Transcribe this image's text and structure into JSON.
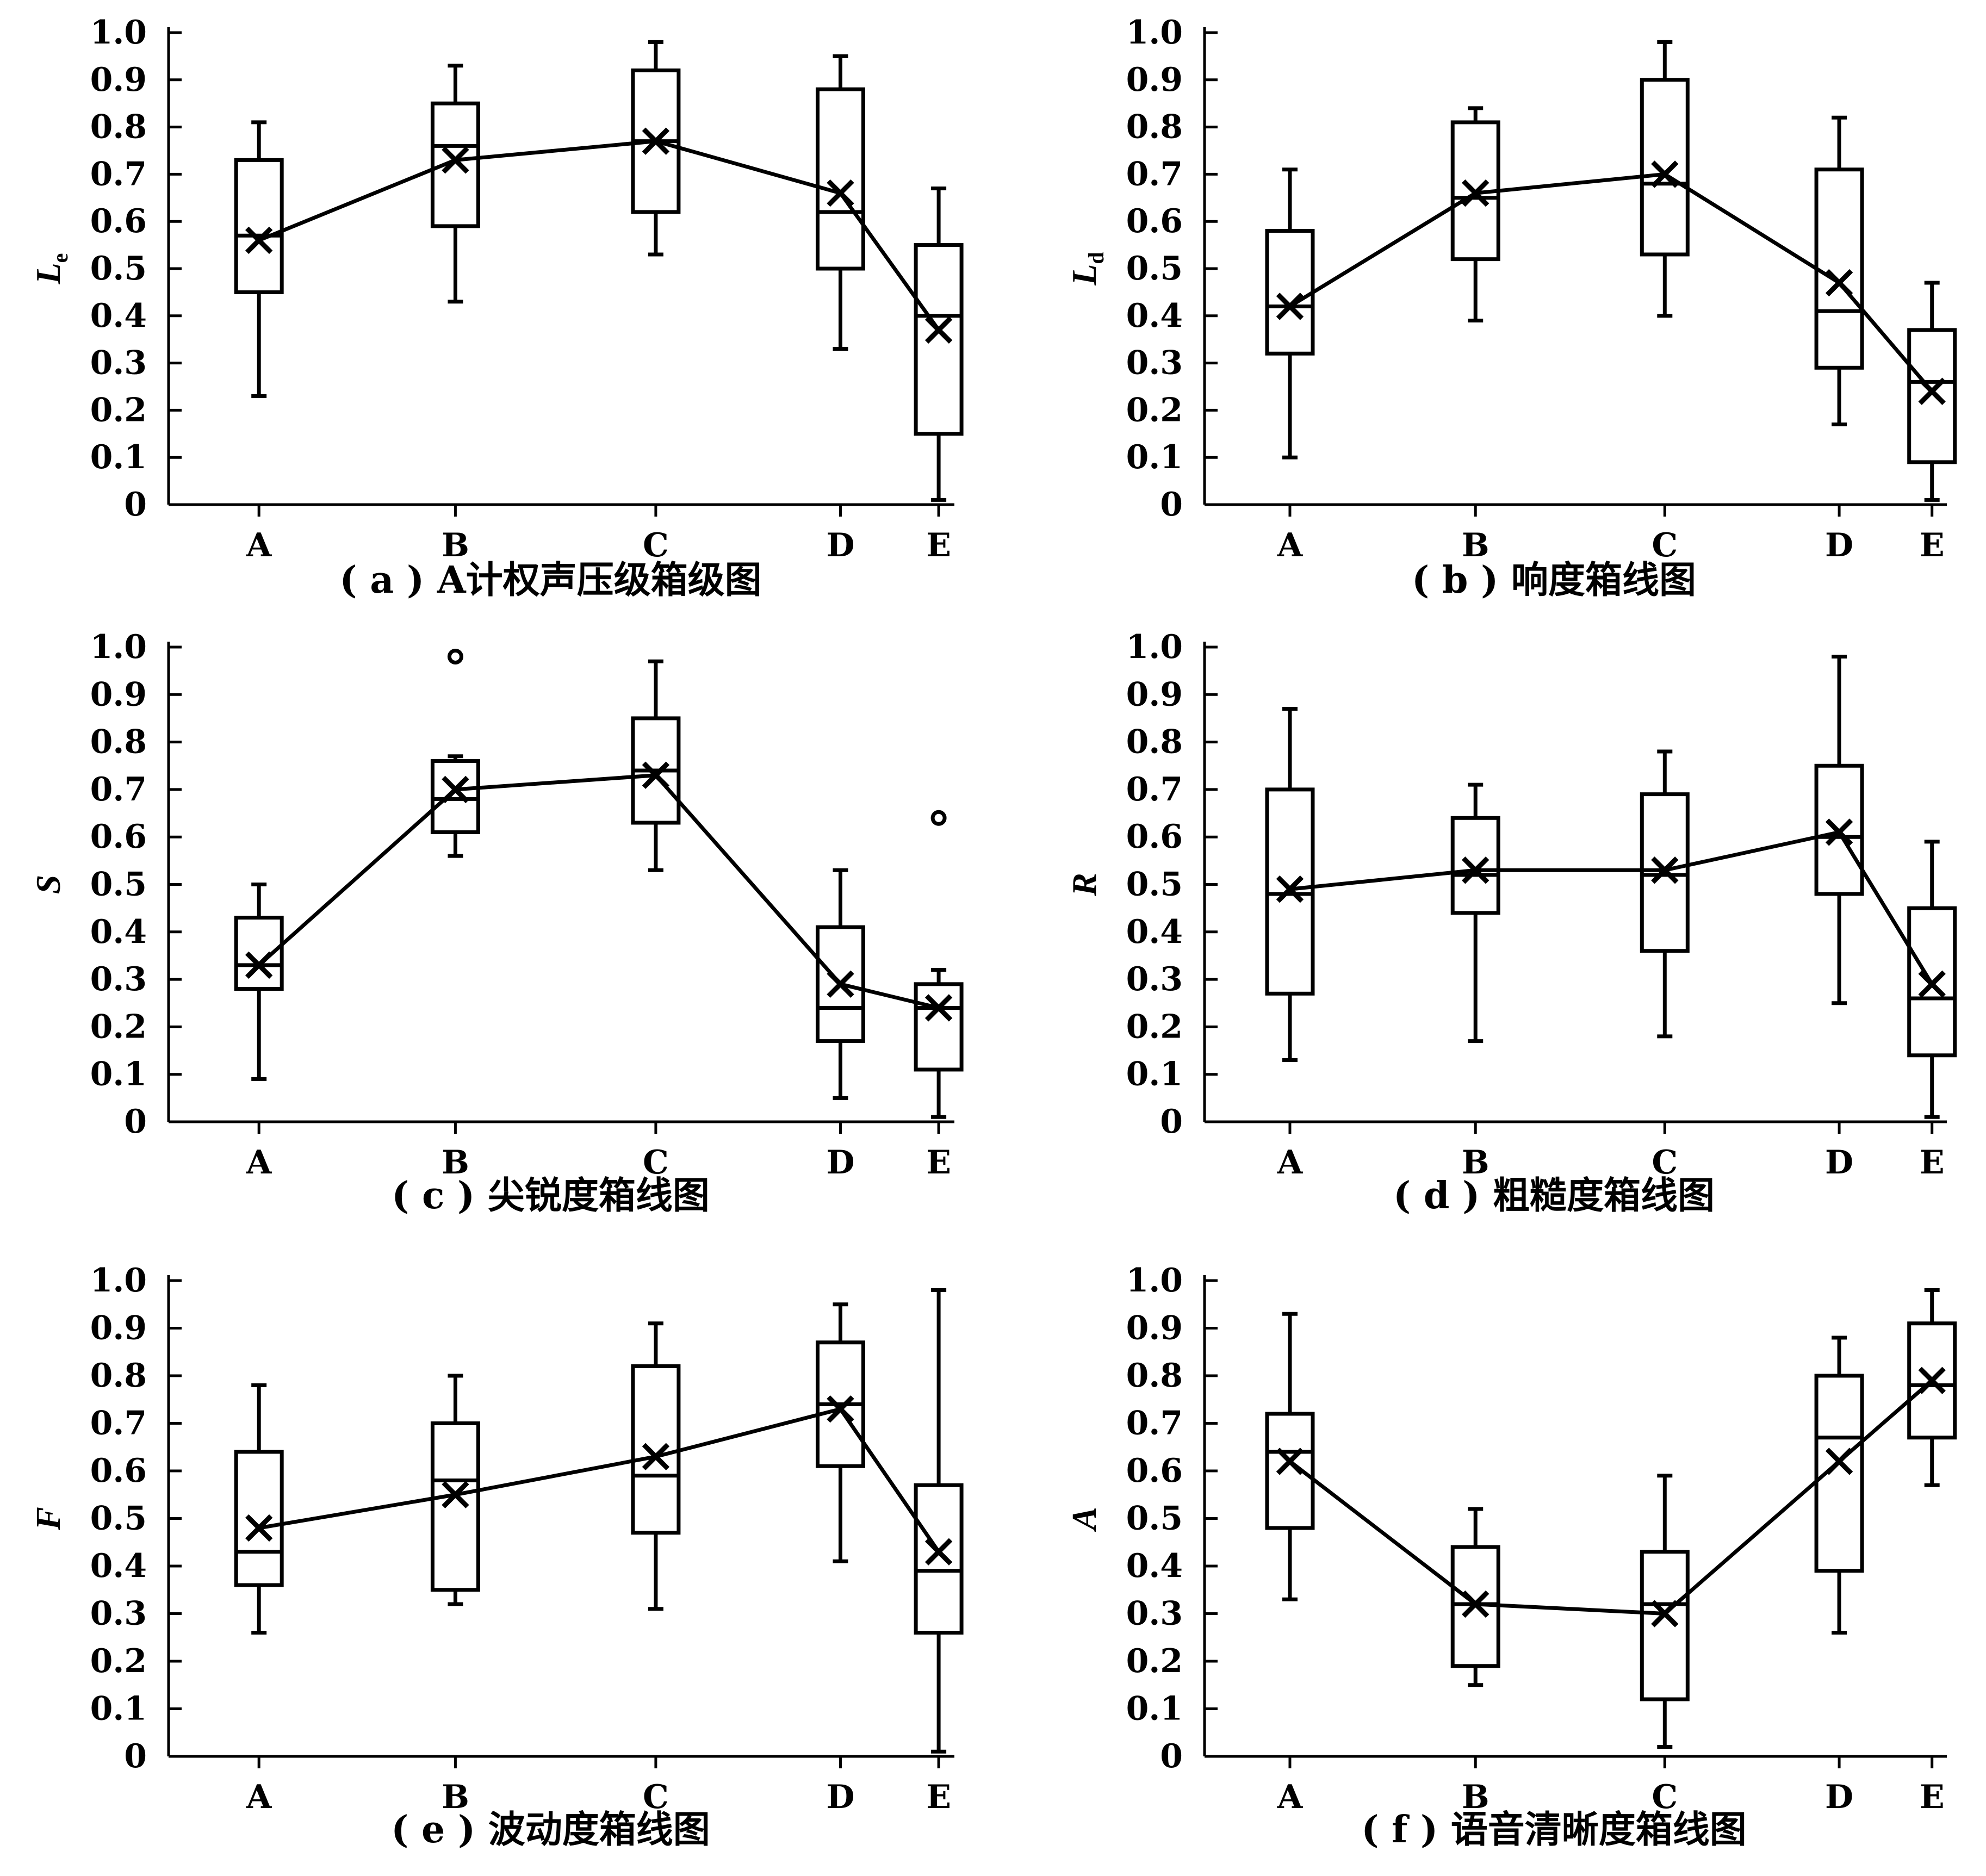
{
  "colors": {
    "ink": "#000000",
    "background": "#ffffff"
  },
  "chart_data": [
    {
      "type": "boxplot",
      "caption": "( a ) A计权声压级箱级图",
      "ylabel": "L",
      "ylabel_sub": "e",
      "ylim": [
        0,
        1.0
      ],
      "yticks": [
        "0",
        "0.1",
        "0.2",
        "0.3",
        "0.4",
        "0.5",
        "0.6",
        "0.7",
        "0.8",
        "0.9",
        "1.0"
      ],
      "categories": [
        "A",
        "B",
        "C",
        "D",
        "E"
      ],
      "boxes": [
        {
          "min": 0.23,
          "q1": 0.45,
          "median": 0.57,
          "q3": 0.73,
          "max": 0.81,
          "mean": 0.56
        },
        {
          "min": 0.43,
          "q1": 0.59,
          "median": 0.76,
          "q3": 0.85,
          "max": 0.93,
          "mean": 0.73
        },
        {
          "min": 0.53,
          "q1": 0.62,
          "median": 0.77,
          "q3": 0.92,
          "max": 0.98,
          "mean": 0.77
        },
        {
          "min": 0.33,
          "q1": 0.5,
          "median": 0.62,
          "q3": 0.88,
          "max": 0.95,
          "mean": 0.66
        },
        {
          "min": 0.01,
          "q1": 0.15,
          "median": 0.4,
          "q3": 0.55,
          "max": 0.67,
          "mean": 0.37
        }
      ],
      "outliers": [],
      "grid": false
    },
    {
      "type": "boxplot",
      "caption": "( b ) 响度箱线图",
      "ylabel": "L",
      "ylabel_sub": "d",
      "ylim": [
        0,
        1.0
      ],
      "yticks": [
        "0",
        "0.1",
        "0.2",
        "0.3",
        "0.4",
        "0.5",
        "0.6",
        "0.7",
        "0.8",
        "0.9",
        "1.0"
      ],
      "categories": [
        "A",
        "B",
        "C",
        "D",
        "E"
      ],
      "boxes": [
        {
          "min": 0.1,
          "q1": 0.32,
          "median": 0.42,
          "q3": 0.58,
          "max": 0.71,
          "mean": 0.42
        },
        {
          "min": 0.39,
          "q1": 0.52,
          "median": 0.65,
          "q3": 0.81,
          "max": 0.84,
          "mean": 0.66
        },
        {
          "min": 0.4,
          "q1": 0.53,
          "median": 0.68,
          "q3": 0.9,
          "max": 0.98,
          "mean": 0.7
        },
        {
          "min": 0.17,
          "q1": 0.29,
          "median": 0.41,
          "q3": 0.71,
          "max": 0.82,
          "mean": 0.47
        },
        {
          "min": 0.01,
          "q1": 0.09,
          "median": 0.26,
          "q3": 0.37,
          "max": 0.47,
          "mean": 0.24
        }
      ],
      "outliers": [],
      "grid": false
    },
    {
      "type": "boxplot",
      "caption": "( c ) 尖锐度箱线图",
      "ylabel": "S",
      "ylabel_sub": "",
      "ylim": [
        0,
        1.0
      ],
      "yticks": [
        "0",
        "0.1",
        "0.2",
        "0.3",
        "0.4",
        "0.5",
        "0.6",
        "0.7",
        "0.8",
        "0.9",
        "1.0"
      ],
      "categories": [
        "A",
        "B",
        "C",
        "D",
        "E"
      ],
      "boxes": [
        {
          "min": 0.09,
          "q1": 0.28,
          "median": 0.33,
          "q3": 0.43,
          "max": 0.5,
          "mean": 0.33
        },
        {
          "min": 0.56,
          "q1": 0.61,
          "median": 0.68,
          "q3": 0.76,
          "max": 0.77,
          "mean": 0.7
        },
        {
          "min": 0.53,
          "q1": 0.63,
          "median": 0.74,
          "q3": 0.85,
          "max": 0.97,
          "mean": 0.73
        },
        {
          "min": 0.05,
          "q1": 0.17,
          "median": 0.24,
          "q3": 0.41,
          "max": 0.53,
          "mean": 0.29
        },
        {
          "min": 0.01,
          "q1": 0.11,
          "median": 0.24,
          "q3": 0.29,
          "max": 0.32,
          "mean": 0.24
        }
      ],
      "outliers": [
        {
          "category": "B",
          "value": 0.98
        },
        {
          "category": "E",
          "value": 0.64
        }
      ],
      "grid": false
    },
    {
      "type": "boxplot",
      "caption": "( d ) 粗糙度箱线图",
      "ylabel": "R",
      "ylabel_sub": "",
      "ylim": [
        0,
        1.0
      ],
      "yticks": [
        "0",
        "0.1",
        "0.2",
        "0.3",
        "0.4",
        "0.5",
        "0.6",
        "0.7",
        "0.8",
        "0.9",
        "1.0"
      ],
      "categories": [
        "A",
        "B",
        "C",
        "D",
        "E"
      ],
      "boxes": [
        {
          "min": 0.13,
          "q1": 0.27,
          "median": 0.48,
          "q3": 0.7,
          "max": 0.87,
          "mean": 0.49
        },
        {
          "min": 0.17,
          "q1": 0.44,
          "median": 0.52,
          "q3": 0.64,
          "max": 0.71,
          "mean": 0.53
        },
        {
          "min": 0.18,
          "q1": 0.36,
          "median": 0.52,
          "q3": 0.69,
          "max": 0.78,
          "mean": 0.53
        },
        {
          "min": 0.25,
          "q1": 0.48,
          "median": 0.6,
          "q3": 0.75,
          "max": 0.98,
          "mean": 0.61
        },
        {
          "min": 0.01,
          "q1": 0.14,
          "median": 0.26,
          "q3": 0.45,
          "max": 0.59,
          "mean": 0.29
        }
      ],
      "outliers": [],
      "grid": false
    },
    {
      "type": "boxplot",
      "caption": "( e ) 波动度箱线图",
      "ylabel": "F",
      "ylabel_sub": "",
      "ylim": [
        0,
        1.0
      ],
      "yticks": [
        "0",
        "0.1",
        "0.2",
        "0.3",
        "0.4",
        "0.5",
        "0.6",
        "0.7",
        "0.8",
        "0.9",
        "1.0"
      ],
      "categories": [
        "A",
        "B",
        "C",
        "D",
        "E"
      ],
      "boxes": [
        {
          "min": 0.26,
          "q1": 0.36,
          "median": 0.43,
          "q3": 0.64,
          "max": 0.78,
          "mean": 0.48
        },
        {
          "min": 0.32,
          "q1": 0.35,
          "median": 0.58,
          "q3": 0.7,
          "max": 0.8,
          "mean": 0.55
        },
        {
          "min": 0.31,
          "q1": 0.47,
          "median": 0.59,
          "q3": 0.82,
          "max": 0.91,
          "mean": 0.63
        },
        {
          "min": 0.41,
          "q1": 0.61,
          "median": 0.74,
          "q3": 0.87,
          "max": 0.95,
          "mean": 0.73
        },
        {
          "min": 0.01,
          "q1": 0.26,
          "median": 0.39,
          "q3": 0.57,
          "max": 0.98,
          "mean": 0.43
        }
      ],
      "outliers": [],
      "grid": false
    },
    {
      "type": "boxplot",
      "caption": "( f ) 语音清晰度箱线图",
      "ylabel": "A",
      "ylabel_sub": "",
      "ylim": [
        0,
        1.0
      ],
      "yticks": [
        "0",
        "0.1",
        "0.2",
        "0.3",
        "0.4",
        "0.5",
        "0.6",
        "0.7",
        "0.8",
        "0.9",
        "1.0"
      ],
      "categories": [
        "A",
        "B",
        "C",
        "D",
        "E"
      ],
      "boxes": [
        {
          "min": 0.33,
          "q1": 0.48,
          "median": 0.64,
          "q3": 0.72,
          "max": 0.93,
          "mean": 0.62
        },
        {
          "min": 0.15,
          "q1": 0.19,
          "median": 0.32,
          "q3": 0.44,
          "max": 0.52,
          "mean": 0.32
        },
        {
          "min": 0.02,
          "q1": 0.12,
          "median": 0.32,
          "q3": 0.43,
          "max": 0.59,
          "mean": 0.3
        },
        {
          "min": 0.26,
          "q1": 0.39,
          "median": 0.67,
          "q3": 0.8,
          "max": 0.88,
          "mean": 0.62
        },
        {
          "min": 0.57,
          "q1": 0.67,
          "median": 0.78,
          "q3": 0.91,
          "max": 0.98,
          "mean": 0.79
        }
      ],
      "outliers": [],
      "grid": false
    }
  ]
}
